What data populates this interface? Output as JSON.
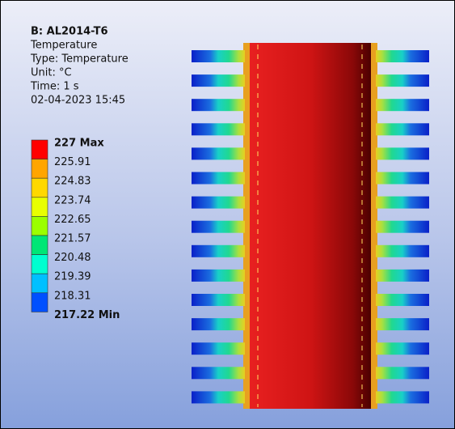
{
  "header": {
    "title": "B: AL2014-T6",
    "lines": [
      "Temperature",
      "Type: Temperature",
      "Unit: °C",
      "Time: 1 s",
      "02-04-2023 15:45"
    ]
  },
  "legend": {
    "labels": [
      "227 Max",
      "225.91",
      "224.83",
      "223.74",
      "222.65",
      "221.57",
      "220.48",
      "219.39",
      "218.31",
      "217.22 Min"
    ],
    "colors": [
      "#ff0000",
      "#ffa500",
      "#ffd800",
      "#e8ff00",
      "#9bff00",
      "#00e676",
      "#00ffd0",
      "#00c0ff",
      "#0050ff"
    ]
  }
}
